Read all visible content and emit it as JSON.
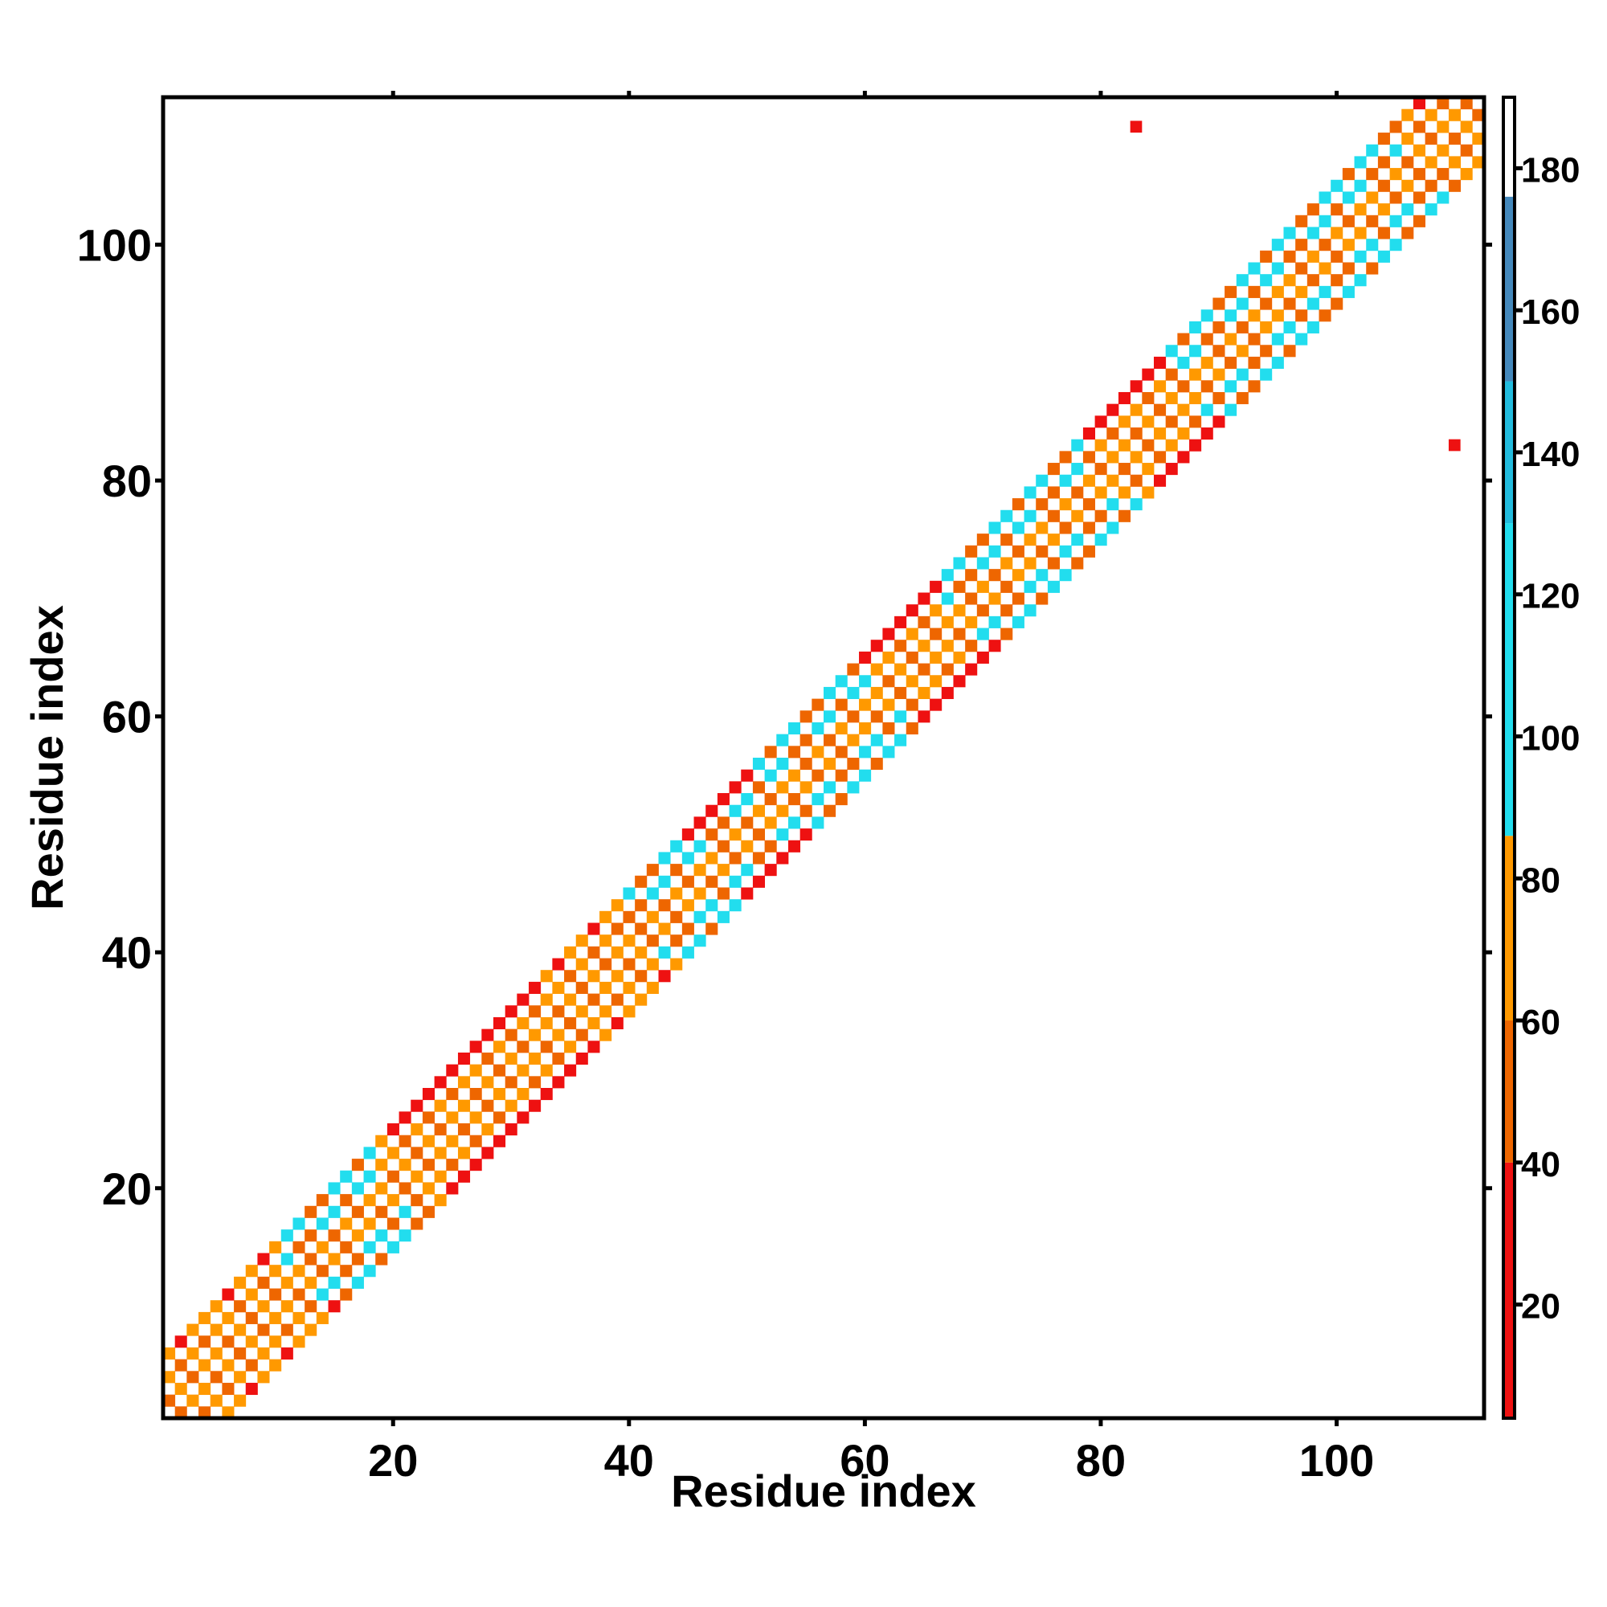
{
  "chart_data": {
    "type": "heatmap",
    "title": "",
    "xlabel": "Residue index",
    "ylabel": "Residue index",
    "xlim": [
      0.5,
      112.5
    ],
    "ylim": [
      0.5,
      112.5
    ],
    "x_ticks": [
      20,
      40,
      60,
      80,
      100
    ],
    "y_ticks": [
      20,
      40,
      60,
      80,
      100
    ],
    "grid": false,
    "colorbar": {
      "range": [
        4,
        190
      ],
      "ticks": [
        20,
        40,
        60,
        80,
        100,
        120,
        140,
        160,
        180
      ],
      "segments": [
        {
          "from": 4,
          "to": 40,
          "color": "#ee1111"
        },
        {
          "from": 40,
          "to": 60,
          "color": "#ee6600"
        },
        {
          "from": 60,
          "to": 86,
          "color": "#ff9900"
        },
        {
          "from": 86,
          "to": 130,
          "color": "#22ddee"
        },
        {
          "from": 130,
          "to": 150,
          "color": "#22bbdd"
        },
        {
          "from": 150,
          "to": 176,
          "color": "#4488bb"
        },
        {
          "from": 176,
          "to": 190,
          "color": "#ffffff"
        }
      ]
    },
    "band": {
      "description_values": "contact pairs |i-j| in 1..5, value by residue",
      "helix_ranges": [
        [
          11,
          18
        ],
        [
          40,
          48
        ],
        [
          49,
          60
        ],
        [
          67,
          78
        ],
        [
          86,
          92
        ],
        [
          93,
          105
        ]
      ],
      "red_ranges": [
        [
          20,
          32
        ],
        [
          45,
          50
        ],
        [
          60,
          66
        ],
        [
          80,
          85
        ]
      ],
      "extra_points": [
        {
          "x": 83,
          "y": 110,
          "value": 15
        },
        {
          "x": 110,
          "y": 83,
          "value": 15
        }
      ]
    }
  }
}
